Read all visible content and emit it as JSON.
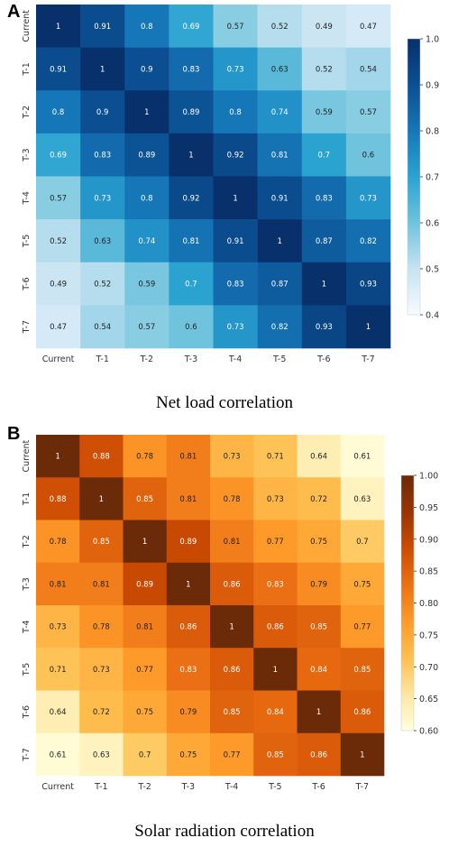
{
  "chart_data": [
    {
      "type": "heatmap",
      "panel": "A",
      "caption": "Net load correlation",
      "categories": [
        "Current",
        "T-1",
        "T-2",
        "T-3",
        "T-4",
        "T-5",
        "T-6",
        "T-7"
      ],
      "values": [
        [
          1,
          0.91,
          0.8,
          0.69,
          0.57,
          0.52,
          0.49,
          0.47
        ],
        [
          0.91,
          1,
          0.9,
          0.83,
          0.73,
          0.63,
          0.52,
          0.54
        ],
        [
          0.8,
          0.9,
          1,
          0.89,
          0.8,
          0.74,
          0.59,
          0.57
        ],
        [
          0.69,
          0.83,
          0.89,
          1,
          0.92,
          0.81,
          0.7,
          0.6
        ],
        [
          0.57,
          0.73,
          0.8,
          0.92,
          1,
          0.91,
          0.83,
          0.73
        ],
        [
          0.52,
          0.63,
          0.74,
          0.81,
          0.91,
          1,
          0.87,
          0.82
        ],
        [
          0.49,
          0.52,
          0.59,
          0.7,
          0.83,
          0.87,
          1,
          0.93
        ],
        [
          0.47,
          0.54,
          0.57,
          0.6,
          0.73,
          0.82,
          0.93,
          1
        ]
      ],
      "colorbar": {
        "min": 0.4,
        "max": 1.0,
        "ticks": [
          "1.0",
          "0.9",
          "0.8",
          "0.7",
          "0.6",
          "0.5",
          "0.4"
        ],
        "ramp": [
          "#f7fbff",
          "#c6e3f2",
          "#6fc3dd",
          "#2aa3d1",
          "#1677b8",
          "#0b4f92",
          "#08306b"
        ]
      }
    },
    {
      "type": "heatmap",
      "panel": "B",
      "caption": "Solar radiation correlation",
      "categories": [
        "Current",
        "T-1",
        "T-2",
        "T-3",
        "T-4",
        "T-5",
        "T-6",
        "T-7"
      ],
      "values": [
        [
          1,
          0.88,
          0.78,
          0.81,
          0.73,
          0.71,
          0.64,
          0.61
        ],
        [
          0.88,
          1,
          0.85,
          0.81,
          0.78,
          0.73,
          0.72,
          0.63
        ],
        [
          0.78,
          0.85,
          1,
          0.89,
          0.81,
          0.77,
          0.75,
          0.7
        ],
        [
          0.81,
          0.81,
          0.89,
          1,
          0.86,
          0.83,
          0.79,
          0.75
        ],
        [
          0.73,
          0.78,
          0.81,
          0.86,
          1,
          0.86,
          0.85,
          0.77
        ],
        [
          0.71,
          0.73,
          0.77,
          0.83,
          0.86,
          1,
          0.84,
          0.85
        ],
        [
          0.64,
          0.72,
          0.75,
          0.79,
          0.85,
          0.84,
          1,
          0.86
        ],
        [
          0.61,
          0.63,
          0.7,
          0.75,
          0.77,
          0.85,
          0.86,
          1
        ]
      ],
      "colorbar": {
        "min": 0.6,
        "max": 1.0,
        "ticks": [
          "1.00",
          "0.95",
          "0.90",
          "0.85",
          "0.80",
          "0.75",
          "0.70",
          "0.65",
          "0.60"
        ],
        "ramp": [
          "#ffffe0",
          "#fee6a0",
          "#fec050",
          "#fe9929",
          "#ec7014",
          "#cc4c02",
          "#993404",
          "#6b2a08"
        ]
      }
    }
  ]
}
